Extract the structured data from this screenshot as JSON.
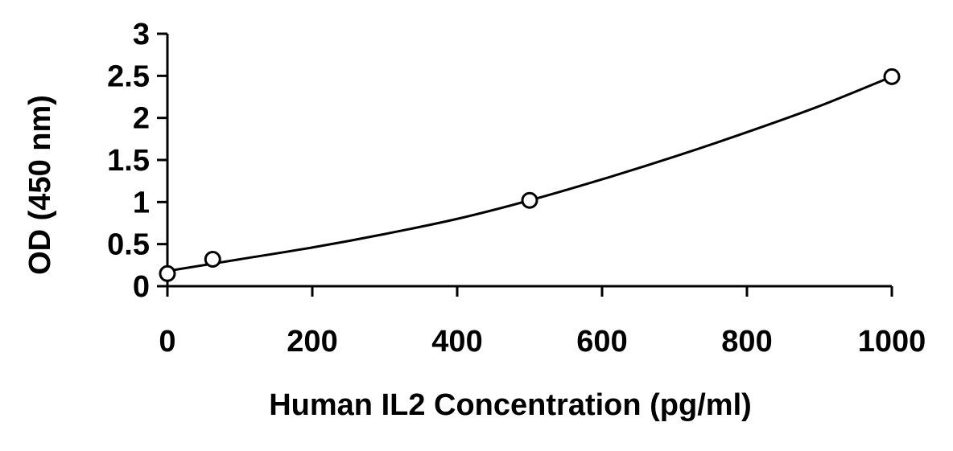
{
  "chart_data": {
    "type": "scatter",
    "title": "",
    "xlabel": "Human IL2 Concentration (pg/ml)",
    "ylabel": "OD (450 nm)",
    "xlim": [
      0,
      1000
    ],
    "ylim": [
      0,
      3
    ],
    "x_ticks": [
      0,
      200,
      400,
      600,
      800,
      1000
    ],
    "x_tick_labels": [
      "0",
      "200",
      "400",
      "600",
      "800",
      "1000"
    ],
    "y_ticks": [
      0,
      0.5,
      1,
      1.5,
      2,
      2.5,
      3
    ],
    "y_tick_labels": [
      "0",
      "0.5",
      "1",
      "1.5",
      "2",
      "2.5",
      "3"
    ],
    "grid": false,
    "legend": "none",
    "series": [
      {
        "marker": "open-circle",
        "x": [
          0,
          62.5,
          500,
          1000
        ],
        "y": [
          0.15,
          0.32,
          1.02,
          2.49
        ]
      }
    ],
    "trendline": {
      "type": "polynomial",
      "x": [
        0,
        100,
        200,
        300,
        400,
        500,
        600,
        700,
        800,
        900,
        1000
      ],
      "y": [
        0.18,
        0.32,
        0.46,
        0.62,
        0.8,
        1.02,
        1.27,
        1.54,
        1.83,
        2.14,
        2.49
      ]
    },
    "colors": {
      "line": "#000000",
      "marker_fill": "#ffffff",
      "marker_stroke": "#000000",
      "text": "#000000"
    }
  }
}
